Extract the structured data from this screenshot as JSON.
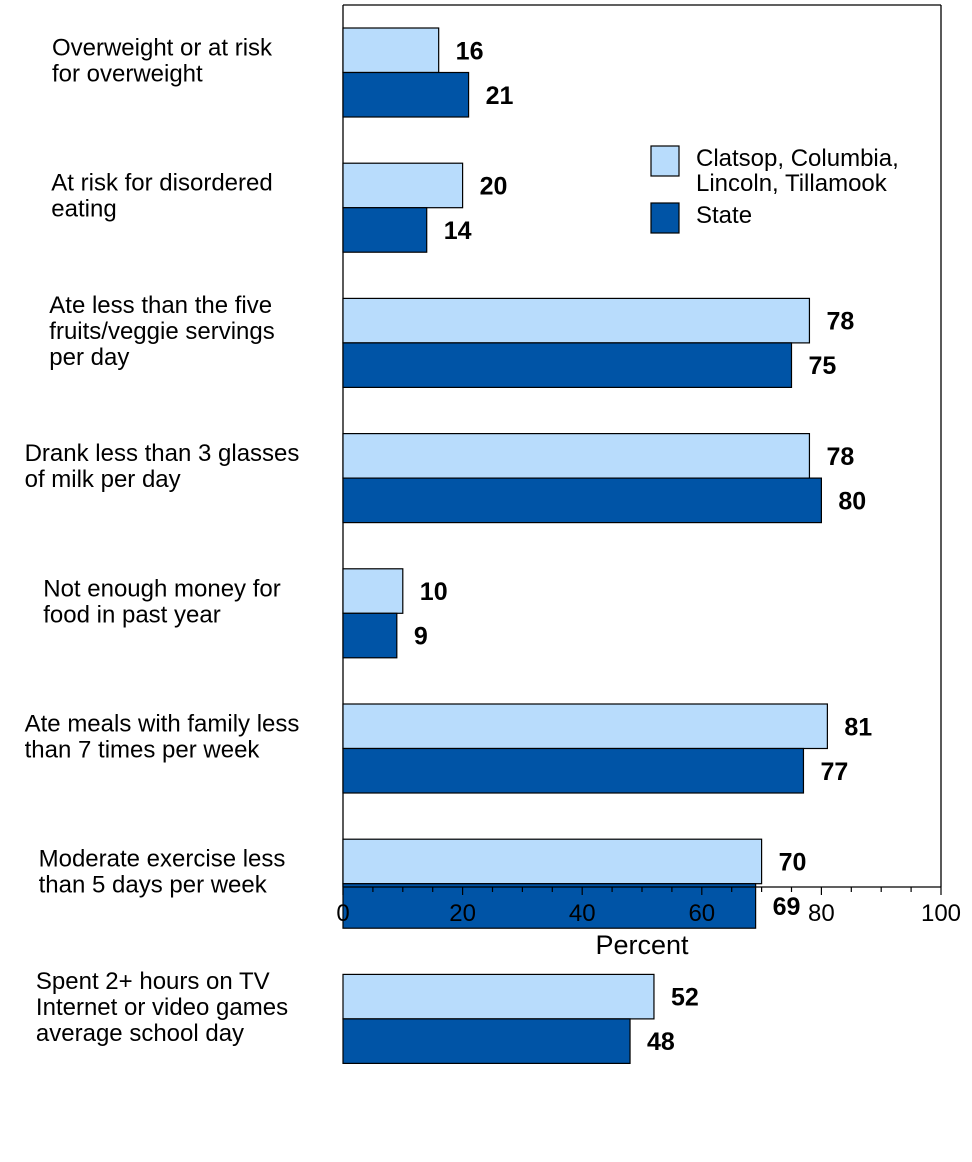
{
  "chart_data": {
    "type": "bar",
    "orientation": "horizontal",
    "categories": [
      [
        "Overweight or at risk",
        "for overweight"
      ],
      [
        "At risk for disordered",
        "eating"
      ],
      [
        "Ate less than the five",
        "fruits/veggie servings",
        "per day"
      ],
      [
        "Drank less than 3 glasses",
        "of milk per day"
      ],
      [
        "Not enough money for",
        "food in past year"
      ],
      [
        "Ate meals with family less",
        "than 7 times per week"
      ],
      [
        "Moderate exercise less",
        "than 5 days per week"
      ],
      [
        "Spent 2+ hours on TV",
        "Internet or video games",
        "average school day"
      ]
    ],
    "series": [
      {
        "name": [
          "Clatsop, Columbia,",
          "Lincoln, Tillamook"
        ],
        "color": "#b8dcfc",
        "values": [
          16,
          20,
          78,
          78,
          10,
          81,
          70,
          52
        ],
        "labels": [
          "16",
          "20",
          "78",
          "78",
          "10",
          "81",
          "70",
          "52"
        ]
      },
      {
        "name": [
          "State"
        ],
        "color": "#0054a6",
        "values": [
          21,
          14,
          75,
          80,
          9,
          77,
          69,
          48
        ],
        "labels": [
          "21",
          "14",
          "75",
          "80",
          "9",
          "77",
          "69",
          "48"
        ]
      }
    ],
    "xlabel": "Percent",
    "xlim": [
      0,
      100
    ],
    "xticks": [
      0,
      20,
      40,
      60,
      80,
      100
    ],
    "xtick_labels": [
      "0",
      "20",
      "40",
      "60",
      "80",
      "100"
    ],
    "legend_position": "top-right",
    "grid": false
  }
}
